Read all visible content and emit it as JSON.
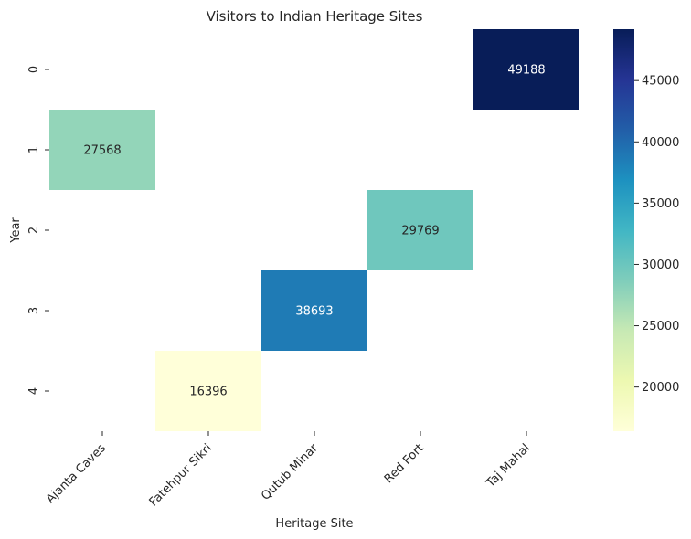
{
  "chart_data": {
    "type": "heatmap",
    "title": "Visitors to Indian Heritage Sites",
    "xlabel": "Heritage Site",
    "ylabel": "Year",
    "x_categories": [
      "Ajanta Caves",
      "Fatehpur Sikri",
      "Qutub Minar",
      "Red Fort",
      "Taj Mahal"
    ],
    "y_categories": [
      "0",
      "1",
      "2",
      "3",
      "4"
    ],
    "cells": [
      {
        "row": 0,
        "col": 4,
        "value": 49188
      },
      {
        "row": 1,
        "col": 0,
        "value": 27568
      },
      {
        "row": 2,
        "col": 3,
        "value": 29769
      },
      {
        "row": 3,
        "col": 2,
        "value": 38693
      },
      {
        "row": 4,
        "col": 1,
        "value": 16396
      }
    ],
    "colormap": "YlGnBu",
    "vmin": 16396,
    "vmax": 49188,
    "colorbar_ticks": [
      20000,
      25000,
      30000,
      35000,
      40000,
      45000
    ],
    "colorbar_tick_labels": [
      "20000",
      "25000",
      "30000",
      "35000",
      "40000",
      "45000"
    ]
  }
}
